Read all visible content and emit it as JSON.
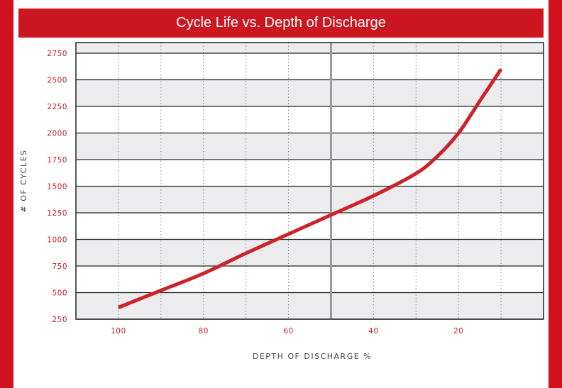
{
  "chart_data": {
    "type": "line",
    "title": "Cycle Life vs. Depth of Discharge",
    "xlabel": "DEPTH OF DISCHARGE %",
    "ylabel": "# OF CYCLES",
    "x_reversed": true,
    "xlim": [
      110,
      0
    ],
    "ylim": [
      250,
      2850
    ],
    "x_ticks": [
      "100",
      "80",
      "60",
      "40",
      "20"
    ],
    "y_ticks": [
      "250",
      "500",
      "750",
      "1000",
      "1250",
      "1500",
      "1750",
      "2000",
      "2250",
      "2500",
      "2750"
    ],
    "grid": true,
    "reference_line_x": 50,
    "series": [
      {
        "x": [
          100,
          90,
          80,
          70,
          60,
          50,
          40,
          30,
          25,
          20,
          15,
          10
        ],
        "y": [
          360,
          520,
          680,
          870,
          1050,
          1230,
          1410,
          1620,
          1780,
          2000,
          2300,
          2600
        ]
      }
    ],
    "colors": {
      "line": "#cc2229",
      "tick_labels": "#c8202a",
      "band": "#ececef",
      "frame": "#222222",
      "reference_line": "#999999"
    }
  }
}
